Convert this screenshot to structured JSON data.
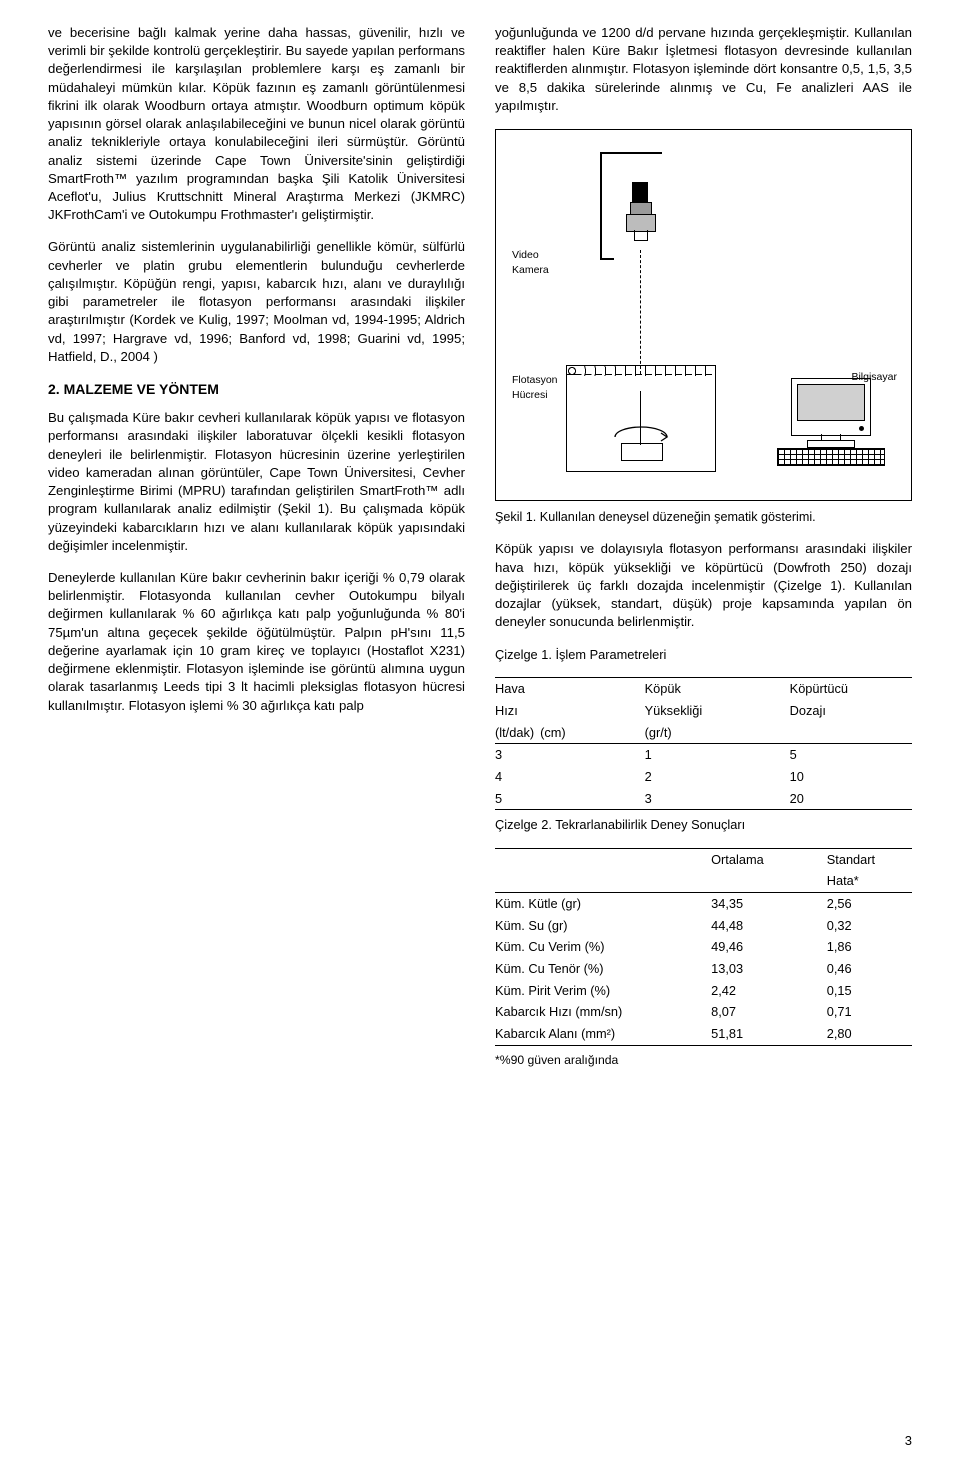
{
  "leftCol": {
    "p1": "ve becerisine bağlı kalmak yerine daha hassas, güvenilir, hızlı ve verimli bir şekilde kontrolü gerçekleştirir. Bu sayede yapılan performans değerlendirmesi ile karşılaşılan problemlere karşı eş zamanlı bir müdahaleyi mümkün kılar. Köpük fazının eş zamanlı görüntülenmesi fikrini ilk olarak Woodburn ortaya atmıştır. Woodburn optimum köpük yapısının görsel olarak anlaşılabileceğini ve bunun nicel olarak görüntü analiz teknikleriyle ortaya konulabileceğini ileri sürmüştür. Görüntü analiz sistemi üzerinde Cape Town Üniversite'sinin geliştirdiği SmartFroth™ yazılım programından başka Şili Katolik Üniversitesi Aceflot'u, Julius Kruttschnitt Mineral Araştırma Merkezi (JKMRC) JKFrothCam'i ve Outokumpu Frothmaster'ı geliştirmiştir.",
    "p2": "Görüntü analiz sistemlerinin uygulanabilirliği genellikle kömür, sülfürlü cevherler ve platin grubu elementlerin bulunduğu cevherlerde çalışılmıştır. Köpüğün rengi, yapısı, kabarcık hızı, alanı ve duraylılığı gibi parametreler ile flotasyon performansı arasındaki ilişkiler araştırılmıştır (Kordek ve Kulig, 1997; Moolman vd, 1994-1995; Aldrich vd, 1997; Hargrave vd, 1996; Banford vd, 1998; Guarini vd, 1995; Hatfield, D., 2004 )",
    "h2": "2. MALZEME VE YÖNTEM",
    "p3": "Bu çalışmada Küre bakır cevheri kullanılarak köpük yapısı ve flotasyon performansı arasındaki ilişkiler laboratuvar ölçekli kesikli flotasyon deneyleri ile belirlenmiştir. Flotasyon hücresinin üzerine yerleştirilen video kameradan alınan görüntüler, Cape Town Üniversitesi, Cevher Zenginleştirme Birimi (MPRU) tarafından geliştirilen SmartFroth™ adlı program kullanılarak analiz edilmiştir (Şekil 1). Bu çalışmada köpük yüzeyindeki kabarcıkların hızı ve alanı kullanılarak köpük yapısındaki değişimler incelenmiştir.",
    "p4": "Deneylerde kullanılan Küre bakır cevherinin bakır içeriği % 0,79 olarak belirlenmiştir. Flotasyonda kullanılan cevher Outokumpu bilyalı değirmen kullanılarak % 60 ağırlıkça katı palp yoğunluğunda % 80'i 75µm'un altına geçecek şekilde öğütülmüştür. Palpın pH'sını 11,5 değerine ayarlamak için 10 gram kireç ve toplayıcı (Hostaflot X231) değirmene eklenmiştir. Flotasyon işleminde ise görüntü alımına uygun olarak tasarlanmış Leeds tipi 3 lt hacimli pleksiglas flotasyon hücresi kullanılmıştır. Flotasyon işlemi % 30 ağırlıkça katı palp"
  },
  "rightCol": {
    "p1": "yoğunluğunda ve 1200 d/d pervane hızında gerçekleşmiştir. Kullanılan reaktifler halen Küre Bakır İşletmesi flotasyon devresinde kullanılan reaktiflerden alınmıştır. Flotasyon işleminde dört konsantre 0,5, 1,5, 3,5 ve 8,5 dakika sürelerinde alınmış ve Cu, Fe analizleri AAS ile yapılmıştır.",
    "fig": {
      "cameraLabel": "Video\nKamera",
      "cellLabel": "Flotasyon\nHücresi",
      "computerLabel": "Bilgisayar"
    },
    "figCaption": "Şekil 1. Kullanılan deneysel düzeneğin şematik gösterimi.",
    "p2": "Köpük yapısı ve dolayısıyla flotasyon performansı arasındaki ilişkiler hava hızı, köpük yüksekliği ve köpürtücü (Dowfroth 250) dozajı değiştirilerek üç farklı dozajda incelenmiştir (Çizelge 1). Kullanılan dozajlar (yüksek, standart, düşük) proje kapsamında yapılan ön deneyler sonucunda belirlenmiştir.",
    "table1": {
      "title": "Çizelge 1. İşlem Parametreleri",
      "head1": [
        "Hava",
        "Köpük",
        "Köpürtücü"
      ],
      "head2": [
        "Hızı",
        "Yüksekliği",
        "Dozajı"
      ],
      "head3": [
        "(lt/dak)",
        "(cm)",
        "(gr/t)"
      ],
      "rows": [
        [
          "3",
          "1",
          "5"
        ],
        [
          "4",
          "2",
          "10"
        ],
        [
          "5",
          "3",
          "20"
        ]
      ]
    },
    "table2": {
      "title": "Çizelge 2. Tekrarlanabilirlik Deney Sonuçları",
      "head": [
        "",
        "Ortalama",
        "Standart"
      ],
      "head2": [
        "",
        "",
        "Hata*"
      ],
      "rows": [
        [
          "Küm. Kütle (gr)",
          "34,35",
          "2,56"
        ],
        [
          "Küm. Su (gr)",
          "44,48",
          "0,32"
        ],
        [
          "Küm. Cu Verim (%)",
          "49,46",
          "1,86"
        ],
        [
          "Küm. Cu Tenör (%)",
          "13,03",
          "0,46"
        ],
        [
          "Küm. Pirit Verim (%)",
          "2,42",
          "0,15"
        ],
        [
          "Kabarcık Hızı (mm/sn)",
          "8,07",
          "0,71"
        ],
        [
          "Kabarcık Alanı (mm²)",
          "51,81",
          "2,80"
        ]
      ],
      "footnote": "*%90 güven aralığında"
    }
  },
  "pageNumber": "3"
}
